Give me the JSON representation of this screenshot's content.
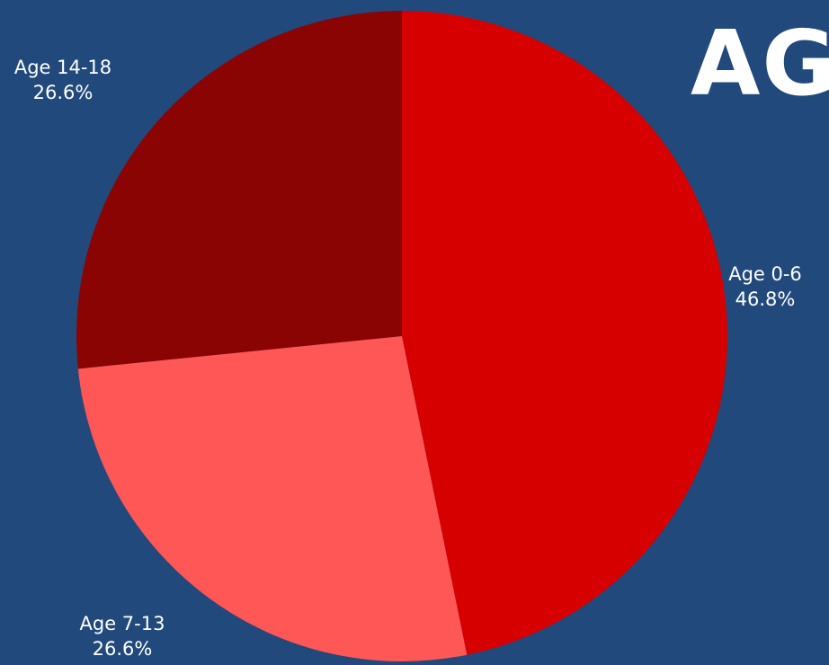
{
  "heading": "AG",
  "colors": {
    "background": "#21497c",
    "text": "#ffffff"
  },
  "chart_data": {
    "type": "pie",
    "title": "",
    "slices": [
      {
        "name": "Age 0-6",
        "value": 46.8,
        "label": "46.8%",
        "color": "#d60000"
      },
      {
        "name": "Age 7-13",
        "value": 26.6,
        "label": "26.6%",
        "color": "#ff5656"
      },
      {
        "name": "Age 14-18",
        "value": 26.6,
        "label": "26.6%",
        "color": "#8a0404"
      }
    ],
    "start_angle_deg": 0,
    "direction": "clockwise",
    "legend": "none"
  }
}
